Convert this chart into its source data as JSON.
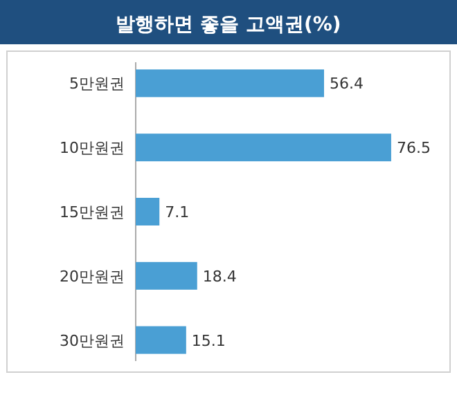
{
  "chart_data": {
    "type": "bar",
    "orientation": "horizontal",
    "title": "발행하면 좋을 고액권(%)",
    "categories": [
      "5만원권",
      "10만원권",
      "15만원권",
      "20만원권",
      "30만원권"
    ],
    "values": [
      56.4,
      76.5,
      7.1,
      18.4,
      15.1
    ],
    "color": "#4a9fd4",
    "data_labels": true
  }
}
